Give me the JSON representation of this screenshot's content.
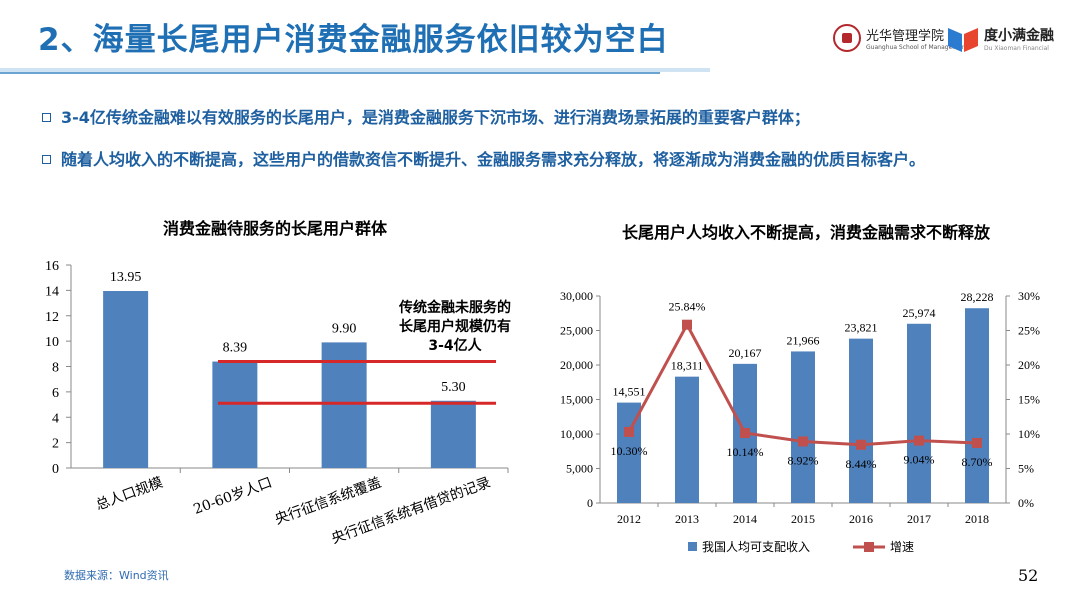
{
  "header": {
    "title": "2、海量长尾用户消费金融服务依旧较为空白",
    "logo1_cn": "光华管理学院",
    "logo1_en": "Guanghua School of Management",
    "logo2_cn": "度小满金融",
    "logo2_en": "Du Xiaoman Financial",
    "logo_colors": {
      "seal": "#b3282d",
      "duxiaoman_blue": "#2b7bd1",
      "duxiaoman_red": "#e8452f"
    }
  },
  "bullets": [
    "3-4亿传统金融难以有效服务的长尾用户，是消费金融服务下沉市场、进行消费场景拓展的重要客户群体；",
    "随着人均收入的不断提高，这些用户的借款资信不断提升、金融服务需求充分释放，将逐渐成为消费金融的优质目标客户。"
  ],
  "footer": {
    "source": "数据来源：Wind资讯",
    "page_number": "52"
  },
  "colors": {
    "title": "#1f6fb4",
    "bullet": "#1e5fa0",
    "bar": "#4f81bd",
    "line": "#c0504d",
    "annotation_line": "#d62828"
  },
  "chart_data": [
    {
      "type": "bar",
      "title": "消费金融待服务的长尾用户群体",
      "categories": [
        "总人口规模",
        "20-60岁人口",
        "央行征信系统覆盖",
        "央行征信系统有借贷的记录"
      ],
      "values": [
        13.95,
        8.39,
        9.9,
        5.3
      ],
      "value_labels": [
        "13.95",
        "8.39",
        "9.90",
        "5.30"
      ],
      "ylim": [
        0,
        16
      ],
      "yticks": [
        "0",
        "2",
        "4",
        "6",
        "8",
        "10",
        "12",
        "14",
        "16"
      ],
      "reference_lines": [
        8.39,
        5.1
      ],
      "annotation": [
        "传统金融未服务的",
        "长尾用户规模仍有",
        "3-4亿人"
      ],
      "grid": false
    },
    {
      "type": "bar+line",
      "title": "长尾用户人均收入不断提高，消费金融需求不断释放",
      "categories": [
        "2012",
        "2013",
        "2014",
        "2015",
        "2016",
        "2017",
        "2018"
      ],
      "series": [
        {
          "name": "我国人均可支配收入",
          "type": "bar",
          "axis": "left",
          "values": [
            14551,
            18311,
            20167,
            21966,
            23821,
            25974,
            28228
          ],
          "labels": [
            "14,551",
            "18,311",
            "20,167",
            "21,966",
            "23,821",
            "25,974",
            "28,228"
          ]
        },
        {
          "name": "增速",
          "type": "line",
          "axis": "right",
          "values": [
            10.3,
            25.84,
            10.14,
            8.92,
            8.44,
            9.04,
            8.7
          ],
          "labels": [
            "10.30%",
            "25.84%",
            "10.14%",
            "8.92%",
            "8.44%",
            "9.04%",
            "8.70%"
          ]
        }
      ],
      "ylim_left": [
        0,
        30000
      ],
      "yticks_left": [
        "0",
        "5,000",
        "10,000",
        "15,000",
        "20,000",
        "25,000",
        "30,000"
      ],
      "ylim_right": [
        0,
        30
      ],
      "yticks_right": [
        "0%",
        "5%",
        "10%",
        "15%",
        "20%",
        "25%",
        "30%"
      ],
      "legend_position": "bottom",
      "grid": false
    }
  ]
}
